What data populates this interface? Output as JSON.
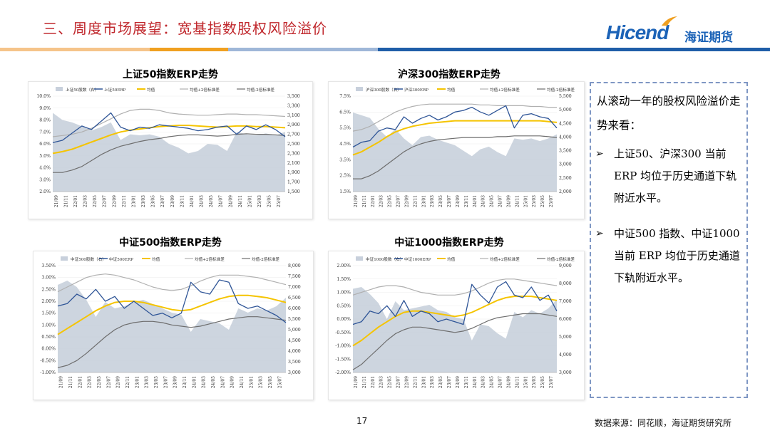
{
  "header": {
    "title": "三、周度市场展望：宽基指数股权风险溢价",
    "logo_en": "Hicend",
    "logo_cn": "海证期货"
  },
  "colors": {
    "erp": "#2f5597",
    "index_area": "#c8d0dc",
    "mean": "#f5c400",
    "bands": "#8c8c8c",
    "title": "#c0282d"
  },
  "chart_data": [
    {
      "type": "line",
      "title": "上证50指数ERP走势",
      "legend": [
        "上证50股数（右）",
        "上证50ERP",
        "均值",
        "均值+2倍标准差",
        "均值-2倍标准差"
      ],
      "x_ticks": [
        "21/09",
        "21/11",
        "22/01",
        "22/03",
        "22/05",
        "22/07",
        "22/09",
        "22/11",
        "23/01",
        "23/03",
        "23/05",
        "23/07",
        "23/09",
        "23/11",
        "24/01",
        "24/03",
        "24/05",
        "24/07",
        "24/09",
        "24/11",
        "25/01",
        "25/03",
        "25/05",
        "25/07"
      ],
      "ylim": [
        2,
        10
      ],
      "y_step": 1,
      "y_decimals": 1,
      "y_pct": true,
      "ylim_r": [
        1500,
        3500
      ],
      "y_r_step": 200,
      "ticks_r": [
        "3,500",
        "3,300",
        "3,100",
        "2,900",
        "2,700",
        "2,500",
        "2,300",
        "2,100",
        "1,900",
        "1,700",
        "1,500"
      ],
      "erp": [
        6.1,
        6.3,
        6.9,
        7.5,
        7.2,
        7.9,
        8.6,
        7.4,
        7.1,
        7.4,
        7.3,
        7.6,
        7.5,
        7.4,
        7.3,
        7.1,
        7.2,
        7.4,
        7.5,
        6.8,
        7.5,
        7.2,
        7.6,
        7.2,
        6.6
      ],
      "index": [
        3150,
        3000,
        2950,
        2870,
        2780,
        2850,
        2950,
        2580,
        2700,
        2680,
        2700,
        2650,
        2500,
        2420,
        2300,
        2350,
        2500,
        2480,
        2350,
        2750,
        2700,
        2680,
        2720,
        2680,
        2750
      ],
      "mean": [
        5.2,
        5.35,
        5.55,
        5.85,
        6.15,
        6.45,
        6.75,
        7.0,
        7.15,
        7.25,
        7.35,
        7.45,
        7.5,
        7.55,
        7.55,
        7.5,
        7.45,
        7.4,
        7.45,
        7.5,
        7.5,
        7.45,
        7.45,
        7.4,
        7.35
      ],
      "upper": [
        6.6,
        6.7,
        6.8,
        7.0,
        7.3,
        7.7,
        8.1,
        8.5,
        8.8,
        8.9,
        8.9,
        8.8,
        8.6,
        8.5,
        8.45,
        8.4,
        8.4,
        8.45,
        8.5,
        8.5,
        8.45,
        8.45,
        8.4,
        8.35,
        8.3
      ],
      "lower": [
        3.6,
        3.6,
        3.8,
        4.1,
        4.6,
        5.1,
        5.5,
        5.8,
        6.0,
        6.2,
        6.35,
        6.45,
        6.6,
        6.7,
        6.75,
        6.75,
        6.7,
        6.65,
        6.7,
        6.8,
        6.85,
        6.8,
        6.8,
        6.75,
        6.7
      ]
    },
    {
      "type": "line",
      "title": "沪深300指数ERP走势",
      "legend": [
        "沪深300股数（右）",
        "沪深300ERP",
        "均值",
        "均值+2倍标准差",
        "均值-2倍标准差"
      ],
      "x_ticks": [
        "21/09",
        "21/11",
        "22/01",
        "22/03",
        "22/05",
        "22/07",
        "22/09",
        "22/11",
        "23/01",
        "23/03",
        "23/05",
        "23/07",
        "23/09",
        "23/11",
        "24/01",
        "24/03",
        "24/05",
        "24/07",
        "24/09",
        "24/11",
        "25/01",
        "25/03",
        "25/05",
        "25/07"
      ],
      "ylim": [
        1.5,
        7.5
      ],
      "y_step": 1,
      "y_decimals": 1,
      "y_pct": true,
      "ylim_r": [
        2000,
        5500
      ],
      "y_r_step": 500,
      "ticks_r": [
        "5,500",
        "5,000",
        "4,500",
        "4,000",
        "3,500",
        "3,000",
        "2,500",
        "2,000"
      ],
      "erp": [
        4.3,
        4.6,
        4.7,
        5.3,
        5.5,
        5.4,
        6.2,
        5.8,
        6.1,
        6.3,
        6.0,
        6.2,
        6.5,
        6.6,
        6.8,
        6.5,
        6.3,
        6.6,
        6.9,
        5.5,
        6.3,
        6.4,
        6.2,
        6.1,
        5.5
      ],
      "index": [
        4900,
        4800,
        4700,
        4300,
        4000,
        4300,
        3950,
        3700,
        4000,
        4050,
        3900,
        3800,
        3700,
        3500,
        3300,
        3550,
        3650,
        3450,
        3300,
        3950,
        3900,
        3950,
        3850,
        3950,
        4100
      ],
      "mean": [
        3.8,
        4.0,
        4.3,
        4.6,
        4.95,
        5.25,
        5.45,
        5.6,
        5.7,
        5.8,
        5.85,
        5.9,
        5.95,
        5.95,
        5.95,
        5.95,
        5.95,
        5.95,
        5.95,
        5.95,
        5.95,
        5.95,
        5.95,
        5.9,
        5.85
      ],
      "upper": [
        5.3,
        5.4,
        5.6,
        5.9,
        6.2,
        6.5,
        6.7,
        6.85,
        6.95,
        7.0,
        7.0,
        7.0,
        7.0,
        7.0,
        7.0,
        6.95,
        6.95,
        6.9,
        6.9,
        6.9,
        6.9,
        6.85,
        6.85,
        6.8,
        6.8
      ],
      "lower": [
        2.3,
        2.3,
        2.5,
        2.8,
        3.2,
        3.6,
        4.0,
        4.3,
        4.5,
        4.65,
        4.75,
        4.8,
        4.85,
        4.9,
        4.9,
        4.9,
        4.9,
        4.95,
        4.95,
        5.0,
        5.0,
        5.0,
        5.0,
        4.95,
        4.9
      ]
    },
    {
      "type": "line",
      "title": "中证500指数ERP走势",
      "legend": [
        "中证500股数（右）",
        "中证500ERP",
        "均值",
        "均值+2倍标准差",
        "均值-2倍标准差"
      ],
      "x_ticks": [
        "21/09",
        "21/11",
        "22/01",
        "22/03",
        "22/05",
        "22/07",
        "22/09",
        "22/11",
        "23/01",
        "23/03",
        "23/05",
        "23/07",
        "23/09",
        "23/11",
        "24/01",
        "24/03",
        "24/05",
        "24/07",
        "24/09",
        "24/11",
        "25/01",
        "25/03",
        "25/05",
        "25/07"
      ],
      "ylim": [
        -1,
        3.5
      ],
      "y_step": 0.5,
      "y_decimals": 2,
      "y_pct": true,
      "ylim_r": [
        3000,
        8000
      ],
      "y_r_step": 500,
      "ticks_r": [
        "8,000",
        "7,500",
        "7,000",
        "6,500",
        "6,000",
        "5,500",
        "5,000",
        "4,500",
        "4,000",
        "3,500",
        "3,000"
      ],
      "erp": [
        1.8,
        1.9,
        2.3,
        2.1,
        2.5,
        2.0,
        2.2,
        1.7,
        2.0,
        1.7,
        1.4,
        1.5,
        1.3,
        1.5,
        2.8,
        2.4,
        2.3,
        2.9,
        2.8,
        1.9,
        1.7,
        1.8,
        1.6,
        1.4,
        1.1
      ],
      "index": [
        7100,
        7300,
        7000,
        6400,
        5600,
        6300,
        6000,
        6100,
        6300,
        6400,
        6200,
        6000,
        5800,
        5700,
        4900,
        5500,
        5400,
        5300,
        5000,
        6000,
        5800,
        6000,
        5900,
        6100,
        6500
      ],
      "mean": [
        0.6,
        0.85,
        1.1,
        1.35,
        1.6,
        1.8,
        1.95,
        2.0,
        2.0,
        1.95,
        1.85,
        1.75,
        1.65,
        1.6,
        1.65,
        1.8,
        1.95,
        2.1,
        2.2,
        2.25,
        2.25,
        2.2,
        2.15,
        2.05,
        1.95
      ],
      "upper": [
        2.4,
        2.6,
        2.8,
        3.0,
        3.1,
        3.15,
        3.1,
        3.0,
        2.9,
        2.75,
        2.6,
        2.5,
        2.45,
        2.5,
        2.65,
        2.85,
        3.0,
        3.1,
        3.1,
        3.1,
        3.05,
        3.0,
        2.9,
        2.8,
        2.7
      ],
      "lower": [
        -0.8,
        -0.7,
        -0.5,
        -0.2,
        0.15,
        0.5,
        0.8,
        1.0,
        1.1,
        1.15,
        1.15,
        1.1,
        1.0,
        0.95,
        0.9,
        0.95,
        1.05,
        1.15,
        1.25,
        1.3,
        1.35,
        1.35,
        1.3,
        1.25,
        1.2
      ]
    },
    {
      "type": "line",
      "title": "中证1000指数ERP走势",
      "legend": [
        "中证1000股数（右）",
        "中证1000ERP",
        "均值",
        "均值+2倍标准差",
        "均值-2倍标准差"
      ],
      "x_ticks": [
        "21/09",
        "21/11",
        "22/01",
        "22/03",
        "22/05",
        "22/07",
        "22/09",
        "22/11",
        "23/01",
        "23/03",
        "23/05",
        "23/07",
        "23/09",
        "23/11",
        "24/01",
        "24/03",
        "24/05",
        "24/07",
        "24/09",
        "24/11",
        "25/01",
        "25/03",
        "25/05",
        "25/07"
      ],
      "ylim": [
        -2,
        2
      ],
      "y_step": 0.5,
      "y_decimals": 2,
      "y_pct": true,
      "ylim_r": [
        3000,
        9000
      ],
      "y_r_step": 1000,
      "ticks_r": [
        "9,000",
        "8,000",
        "7,000",
        "6,000",
        "5,000",
        "4,000",
        "3,000"
      ],
      "erp": [
        -0.2,
        -0.1,
        0.3,
        0.2,
        0.5,
        0.1,
        0.7,
        0.1,
        0.3,
        0.2,
        -0.1,
        0.0,
        -0.1,
        -0.2,
        1.3,
        0.9,
        0.6,
        1.2,
        1.4,
        0.9,
        0.8,
        1.2,
        0.7,
        0.9,
        0.3
      ],
      "index": [
        7700,
        7800,
        7400,
        6900,
        6000,
        7000,
        6500,
        6600,
        6700,
        6800,
        6500,
        6400,
        6100,
        6000,
        4800,
        5700,
        5600,
        5200,
        4900,
        6400,
        6100,
        6500,
        6300,
        6600,
        7100
      ],
      "mean": [
        -1.0,
        -0.8,
        -0.55,
        -0.3,
        -0.1,
        0.1,
        0.25,
        0.3,
        0.3,
        0.25,
        0.2,
        0.15,
        0.1,
        0.15,
        0.25,
        0.4,
        0.55,
        0.7,
        0.8,
        0.85,
        0.85,
        0.85,
        0.8,
        0.75,
        0.7
      ],
      "upper": [
        0.9,
        1.0,
        1.1,
        1.2,
        1.25,
        1.25,
        1.2,
        1.1,
        1.0,
        0.95,
        0.9,
        0.9,
        0.9,
        0.95,
        1.05,
        1.2,
        1.35,
        1.45,
        1.5,
        1.5,
        1.45,
        1.4,
        1.35,
        1.3,
        1.25
      ],
      "lower": [
        -1.9,
        -1.7,
        -1.4,
        -1.1,
        -0.8,
        -0.55,
        -0.4,
        -0.3,
        -0.3,
        -0.35,
        -0.4,
        -0.45,
        -0.5,
        -0.45,
        -0.35,
        -0.2,
        -0.05,
        0.05,
        0.1,
        0.15,
        0.2,
        0.2,
        0.2,
        0.15,
        0.1
      ]
    }
  ],
  "textbox": {
    "intro": "从滚动一年的股权风险溢价走势来看：",
    "bullets": [
      "上证50、沪深300 当前ERP 均位于历史通道下轨附近水平。",
      "中证500 指数、中证1000当前 ERP 均位于历史通道下轨附近水平。"
    ],
    "bullet_symbol": "➢"
  },
  "footer": {
    "page": "17",
    "source": "数据来源：同花顺，海证期货研究所"
  }
}
